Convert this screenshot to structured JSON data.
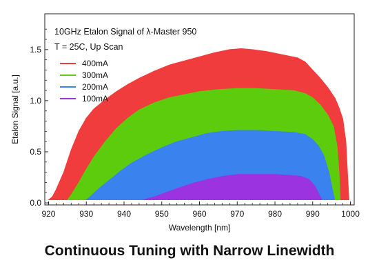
{
  "caption": "Continuous Tuning with Narrow Linewidth",
  "chart_data": {
    "type": "area",
    "title_lines": [
      "10GHz Etalon Signal of  λ-Master 950",
      "T = 25C, Up Scan"
    ],
    "xlabel": "Wavelength [nm]",
    "ylabel": "Etalon Signal [a.u.]",
    "xlim": [
      919,
      1001
    ],
    "ylim": [
      -0.02,
      1.85
    ],
    "xticks": [
      920,
      930,
      940,
      950,
      960,
      970,
      980,
      990,
      1000
    ],
    "xtick_labels": [
      "920",
      "930",
      "940",
      "950",
      "960",
      "970",
      "980",
      "990",
      "1000"
    ],
    "yticks": [
      0.0,
      0.5,
      1.0,
      1.5
    ],
    "ytick_labels": [
      "0.0",
      "0.5",
      "1.0",
      "1.5"
    ],
    "grid": false,
    "legend_position": "top-left",
    "series": [
      {
        "name": "400mA",
        "color": "#f03c3c",
        "upper": [
          [
            920,
            0.03
          ],
          [
            921,
            0.06
          ],
          [
            922,
            0.13
          ],
          [
            924,
            0.3
          ],
          [
            926,
            0.52
          ],
          [
            928,
            0.7
          ],
          [
            930,
            0.83
          ],
          [
            932,
            0.92
          ],
          [
            935,
            1.01
          ],
          [
            938,
            1.09
          ],
          [
            941,
            1.16
          ],
          [
            944,
            1.22
          ],
          [
            948,
            1.29
          ],
          [
            952,
            1.35
          ],
          [
            956,
            1.39
          ],
          [
            960,
            1.43
          ],
          [
            964,
            1.47
          ],
          [
            968,
            1.5
          ],
          [
            971,
            1.51
          ],
          [
            974,
            1.5
          ],
          [
            978,
            1.48
          ],
          [
            982,
            1.45
          ],
          [
            986,
            1.42
          ],
          [
            988,
            1.38
          ],
          [
            990,
            1.3
          ],
          [
            992,
            1.22
          ],
          [
            994,
            1.13
          ],
          [
            996,
            1.02
          ],
          [
            997,
            0.93
          ],
          [
            998,
            0.82
          ],
          [
            998.8,
            0.6
          ],
          [
            999.3,
            0.25
          ],
          [
            999.6,
            0.05
          ]
        ],
        "lower": [
          [
            920,
            0.03
          ],
          [
            999.6,
            0.03
          ]
        ]
      },
      {
        "name": "300mA",
        "color": "#5dcc0c",
        "upper": [
          [
            925,
            0.03
          ],
          [
            926,
            0.08
          ],
          [
            928,
            0.2
          ],
          [
            930,
            0.33
          ],
          [
            932,
            0.45
          ],
          [
            935,
            0.6
          ],
          [
            938,
            0.73
          ],
          [
            941,
            0.83
          ],
          [
            944,
            0.91
          ],
          [
            948,
            0.98
          ],
          [
            952,
            1.03
          ],
          [
            956,
            1.06
          ],
          [
            960,
            1.09
          ],
          [
            965,
            1.11
          ],
          [
            970,
            1.12
          ],
          [
            975,
            1.12
          ],
          [
            980,
            1.11
          ],
          [
            985,
            1.1
          ],
          [
            988,
            1.07
          ],
          [
            990,
            1.03
          ],
          [
            992,
            0.96
          ],
          [
            994,
            0.86
          ],
          [
            995.5,
            0.75
          ],
          [
            996.5,
            0.55
          ],
          [
            997,
            0.3
          ],
          [
            997.3,
            0.05
          ]
        ],
        "lower": [
          [
            925,
            0.03
          ],
          [
            997.3,
            0.03
          ]
        ]
      },
      {
        "name": "200mA",
        "color": "#3a82ee",
        "upper": [
          [
            930,
            0.03
          ],
          [
            931,
            0.06
          ],
          [
            933,
            0.13
          ],
          [
            936,
            0.22
          ],
          [
            939,
            0.31
          ],
          [
            942,
            0.39
          ],
          [
            946,
            0.47
          ],
          [
            950,
            0.54
          ],
          [
            954,
            0.6
          ],
          [
            958,
            0.64
          ],
          [
            962,
            0.68
          ],
          [
            966,
            0.7
          ],
          [
            970,
            0.71
          ],
          [
            975,
            0.71
          ],
          [
            980,
            0.7
          ],
          [
            985,
            0.69
          ],
          [
            988,
            0.67
          ],
          [
            990,
            0.62
          ],
          [
            991.5,
            0.56
          ],
          [
            993,
            0.46
          ],
          [
            994.3,
            0.3
          ],
          [
            995.3,
            0.12
          ],
          [
            995.8,
            0.04
          ]
        ],
        "lower": [
          [
            930,
            0.03
          ],
          [
            995.8,
            0.03
          ]
        ]
      },
      {
        "name": "100mA",
        "color": "#9b34e0",
        "upper": [
          [
            945,
            0.03
          ],
          [
            948,
            0.06
          ],
          [
            951,
            0.1
          ],
          [
            954,
            0.14
          ],
          [
            958,
            0.19
          ],
          [
            962,
            0.23
          ],
          [
            966,
            0.26
          ],
          [
            970,
            0.28
          ],
          [
            975,
            0.28
          ],
          [
            980,
            0.28
          ],
          [
            984,
            0.27
          ],
          [
            987,
            0.26
          ],
          [
            989,
            0.23
          ],
          [
            990.5,
            0.17
          ],
          [
            991.5,
            0.1
          ],
          [
            992.3,
            0.04
          ]
        ],
        "lower": [
          [
            945,
            0.03
          ],
          [
            992.3,
            0.03
          ]
        ]
      }
    ]
  }
}
